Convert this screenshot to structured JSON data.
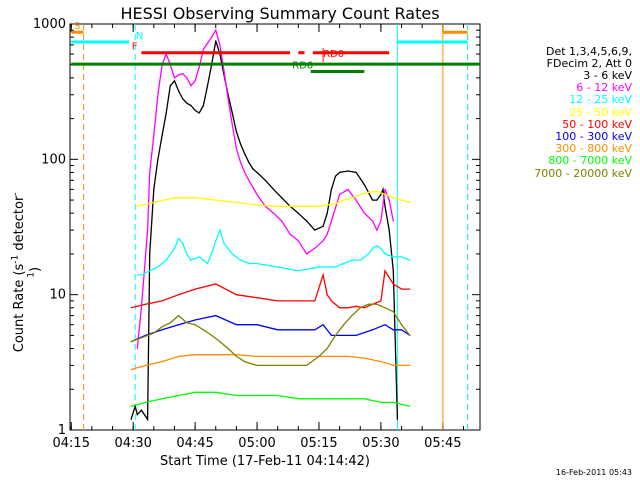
{
  "chart_data": {
    "type": "line",
    "title": "HESSI Observing Summary Count Rates",
    "xlabel": "Start Time (17-Feb-11 04:14:42)",
    "ylabel_prefix": "Count Rate (s",
    "ylabel_sup1": "-1",
    "ylabel_mid": " detector",
    "ylabel_sup2": "-1",
    "ylabel_suffix": ")",
    "yscale": "log",
    "ylim": [
      1,
      1000
    ],
    "xlim": [
      "04:14:42",
      "05:54:00"
    ],
    "y_ticks": [
      "1",
      "10",
      "100",
      "1000"
    ],
    "x_ticks": [
      "04:15",
      "04:30",
      "04:45",
      "05:00",
      "05:15",
      "05:30",
      "05:45"
    ],
    "legend_header": [
      "Det 1,3,4,5,6,9,",
      "FDecim 2, Att 0"
    ],
    "footer": "16-Feb-2011 05:43",
    "series": [
      {
        "name": "3 - 6 keV",
        "color": "#000000",
        "t": [
          "04:29:30",
          "04:30:30",
          "04:31:00",
          "04:32:00",
          "04:33:30",
          "04:34:00",
          "04:35:00",
          "04:36:00",
          "04:37:00",
          "04:38:00",
          "04:39:00",
          "04:40:00",
          "04:41:00",
          "04:42:00",
          "04:43:00",
          "04:44:00",
          "04:45:00",
          "04:46:00",
          "04:47:00",
          "04:48:00",
          "04:49:00",
          "04:50:00",
          "04:51:00",
          "04:52:00",
          "04:53:00",
          "04:54:00",
          "04:55:00",
          "04:56:00",
          "04:57:00",
          "04:58:00",
          "04:59:00",
          "05:00:00",
          "05:02:00",
          "05:04:00",
          "05:06:00",
          "05:08:00",
          "05:10:00",
          "05:12:00",
          "05:14:00",
          "05:16:00",
          "05:17:00",
          "05:18:00",
          "05:19:00",
          "05:20:00",
          "05:22:00",
          "05:24:00",
          "05:26:00",
          "05:28:00",
          "05:29:00",
          "05:30:00",
          "05:30:30",
          "05:31:00",
          "05:32:00",
          "05:33:00",
          "05:34:00"
        ],
        "v": [
          1.2,
          1.5,
          1.3,
          1.4,
          1.2,
          20,
          60,
          100,
          150,
          220,
          350,
          380,
          320,
          280,
          260,
          250,
          230,
          220,
          250,
          350,
          500,
          750,
          600,
          420,
          300,
          220,
          160,
          130,
          110,
          95,
          85,
          80,
          70,
          60,
          52,
          45,
          40,
          35,
          30,
          32,
          40,
          60,
          75,
          80,
          82,
          80,
          65,
          50,
          50,
          55,
          60,
          45,
          30,
          15,
          1.2
        ]
      },
      {
        "name": "6 - 12 keV",
        "color": "#ff00ff",
        "t": [
          "04:31:00",
          "04:32:00",
          "04:33:30",
          "04:34:00",
          "04:35:00",
          "04:36:00",
          "04:37:00",
          "04:38:00",
          "04:39:00",
          "04:40:00",
          "04:41:00",
          "04:42:00",
          "04:43:00",
          "04:44:00",
          "04:45:00",
          "04:46:00",
          "04:47:00",
          "04:48:00",
          "04:49:00",
          "04:50:00",
          "04:51:00",
          "04:52:00",
          "04:53:00",
          "04:54:00",
          "04:55:00",
          "04:56:00",
          "04:57:00",
          "04:58:00",
          "05:00:00",
          "05:02:00",
          "05:04:00",
          "05:06:00",
          "05:08:00",
          "05:10:00",
          "05:12:00",
          "05:14:00",
          "05:16:00",
          "05:17:00",
          "05:18:00",
          "05:20:00",
          "05:22:00",
          "05:24:00",
          "05:26:00",
          "05:28:00",
          "05:29:00",
          "05:30:00",
          "05:31:00",
          "05:32:00",
          "05:33:00"
        ],
        "v": [
          4,
          8,
          30,
          80,
          150,
          300,
          500,
          600,
          500,
          400,
          420,
          430,
          400,
          350,
          380,
          480,
          650,
          720,
          800,
          900,
          700,
          450,
          280,
          180,
          120,
          95,
          80,
          70,
          55,
          45,
          40,
          35,
          28,
          25,
          20,
          22,
          25,
          28,
          35,
          55,
          60,
          50,
          40,
          35,
          30,
          35,
          60,
          50,
          35
        ]
      },
      {
        "name": "12 - 25 keV",
        "color": "#00ffff",
        "t": [
          "04:31:00",
          "04:32:00",
          "04:34:00",
          "04:36:00",
          "04:38:00",
          "04:40:00",
          "04:41:00",
          "04:42:00",
          "04:43:00",
          "04:44:00",
          "04:46:00",
          "04:48:00",
          "04:49:00",
          "04:50:00",
          "04:51:00",
          "04:52:00",
          "04:54:00",
          "04:56:00",
          "04:58:00",
          "05:00:00",
          "05:05:00",
          "05:10:00",
          "05:15:00",
          "05:17:00",
          "05:19:00",
          "05:21:00",
          "05:23:00",
          "05:25:00",
          "05:27:00",
          "05:28:00",
          "05:29:00",
          "05:30:00",
          "05:31:00",
          "05:33:00",
          "05:35:00",
          "05:37:00"
        ],
        "v": [
          14,
          14,
          15,
          16,
          18,
          22,
          26,
          24,
          20,
          18,
          19,
          17,
          20,
          25,
          30,
          24,
          20,
          18,
          17,
          17,
          16,
          15,
          16,
          16,
          16,
          17,
          18,
          18,
          20,
          22,
          23,
          22,
          20,
          19,
          19,
          18
        ]
      },
      {
        "name": "25 - 50 keV",
        "color": "#ffff00",
        "t": [
          "04:31:00",
          "04:35:00",
          "04:40:00",
          "04:45:00",
          "04:50:00",
          "04:55:00",
          "05:00:00",
          "05:05:00",
          "05:10:00",
          "05:15:00",
          "05:17:00",
          "05:19:00",
          "05:21:00",
          "05:23:00",
          "05:25:00",
          "05:27:00",
          "05:29:00",
          "05:31:00",
          "05:33:00",
          "05:37:00"
        ],
        "v": [
          45,
          48,
          52,
          52,
          50,
          48,
          46,
          45,
          45,
          45,
          46,
          47,
          50,
          52,
          55,
          57,
          58,
          55,
          52,
          48
        ]
      },
      {
        "name": "50 - 100 keV",
        "color": "#ff0000",
        "t": [
          "04:29:30",
          "04:33:00",
          "04:37:00",
          "04:41:00",
          "04:45:00",
          "04:50:00",
          "04:55:00",
          "05:00:00",
          "05:05:00",
          "05:10:00",
          "05:14:00",
          "05:16:00",
          "05:17:00",
          "05:18:00",
          "05:20:00",
          "05:22:00",
          "05:24:00",
          "05:26:00",
          "05:28:00",
          "05:30:00",
          "05:31:00",
          "05:33:00",
          "05:35:00",
          "05:37:00"
        ],
        "v": [
          8,
          8.5,
          9,
          10,
          11,
          12,
          10,
          9.5,
          9,
          9,
          9,
          14,
          10,
          9,
          8,
          8,
          8.2,
          8,
          8.5,
          9,
          15,
          12,
          11,
          11
        ]
      },
      {
        "name": "100 - 300 keV",
        "color": "#0000ff",
        "t": [
          "04:29:30",
          "04:33:00",
          "04:37:00",
          "04:41:00",
          "04:45:00",
          "04:50:00",
          "04:55:00",
          "05:00:00",
          "05:05:00",
          "05:10:00",
          "05:14:00",
          "05:16:00",
          "05:18:00",
          "05:20:00",
          "05:24:00",
          "05:28:00",
          "05:31:00",
          "05:33:00",
          "05:35:00",
          "05:37:00"
        ],
        "v": [
          4.5,
          5,
          5.5,
          6,
          6.5,
          7,
          6,
          6,
          5.5,
          5.5,
          5.5,
          6,
          5,
          5,
          5,
          5.5,
          6,
          5.5,
          5.5,
          5
        ]
      },
      {
        "name": "300 - 800 keV",
        "color": "#ff8c00",
        "t": [
          "04:29:30",
          "04:33:00",
          "04:37:00",
          "04:41:00",
          "04:45:00",
          "04:50:00",
          "04:55:00",
          "05:00:00",
          "05:05:00",
          "05:10:00",
          "05:14:00",
          "05:18:00",
          "05:22:00",
          "05:26:00",
          "05:30:00",
          "05:33:00",
          "05:37:00"
        ],
        "v": [
          2.8,
          3,
          3.2,
          3.5,
          3.6,
          3.6,
          3.6,
          3.5,
          3.5,
          3.5,
          3.5,
          3.5,
          3.5,
          3.4,
          3.2,
          3,
          3
        ]
      },
      {
        "name": "800 - 7000 keV",
        "color": "#00ff00",
        "t": [
          "04:29:30",
          "04:33:00",
          "04:37:00",
          "04:41:00",
          "04:45:00",
          "04:50:00",
          "04:55:00",
          "05:00:00",
          "05:05:00",
          "05:10:00",
          "05:14:00",
          "05:18:00",
          "05:22:00",
          "05:26:00",
          "05:30:00",
          "05:33:00",
          "05:37:00"
        ],
        "v": [
          1.5,
          1.6,
          1.7,
          1.8,
          1.9,
          1.9,
          1.8,
          1.8,
          1.8,
          1.7,
          1.7,
          1.7,
          1.7,
          1.7,
          1.6,
          1.6,
          1.5
        ]
      },
      {
        "name": "7000 - 20000 keV",
        "color": "#808000",
        "t": [
          "04:29:30",
          "04:32:00",
          "04:35:00",
          "04:37:00",
          "04:39:00",
          "04:41:00",
          "04:43:00",
          "04:45:00",
          "04:47:00",
          "04:49:00",
          "04:51:00",
          "04:53:00",
          "04:55:00",
          "04:57:00",
          "05:00:00",
          "05:04:00",
          "05:08:00",
          "05:12:00",
          "05:15:00",
          "05:17:00",
          "05:19:00",
          "05:21:00",
          "05:23:00",
          "05:25:00",
          "05:27:00",
          "05:29:00",
          "05:31:00",
          "05:33:00",
          "05:35:00",
          "05:37:00"
        ],
        "v": [
          4.5,
          4.8,
          5.2,
          5.8,
          6.2,
          7,
          6.2,
          6,
          5.5,
          5,
          4.5,
          4,
          3.5,
          3.2,
          3,
          3,
          3,
          3,
          3.5,
          4,
          5,
          6,
          7,
          8,
          8.5,
          8.5,
          8,
          7.5,
          6,
          5
        ]
      }
    ],
    "state_bars": [
      {
        "label": "S",
        "color": "#ff8c00",
        "segments": [
          [
            "04:15:00",
            "04:18:00"
          ],
          [
            "05:45:00",
            "05:51:00"
          ]
        ],
        "y": 1.0
      },
      {
        "label": "N",
        "color": "#00ffff",
        "segments": [
          [
            "04:15:00",
            "04:29:00"
          ],
          [
            "05:34:00",
            "05:51:00"
          ]
        ],
        "y": 2.2
      },
      {
        "label": "F",
        "color": "#ff0000",
        "segments": [
          [
            "04:32:00",
            "05:08:00"
          ],
          [
            "05:10:00",
            "05:11:30"
          ],
          [
            "05:13:30",
            "05:22:00"
          ],
          [
            "05:22:00",
            "05:32:00"
          ]
        ],
        "y": 3.5
      },
      {
        "label": "RD0",
        "color": "#ff0000",
        "segments": [],
        "y": 4.4
      },
      {
        "label": "",
        "color": "#008000",
        "segments": [
          [
            "04:15:00",
            "05:54:00"
          ]
        ],
        "y": 4.9
      },
      {
        "label": "RD6",
        "color": "#008000",
        "segments": [
          [
            "05:13:00",
            "05:26:00"
          ]
        ],
        "y": 5.8
      }
    ],
    "vlines": [
      {
        "t": "04:18:00",
        "color": "#ff8c00",
        "dash": true
      },
      {
        "t": "04:30:30",
        "color": "#00ffff",
        "dash": true
      },
      {
        "t": "05:34:00",
        "color": "#00ffff",
        "dash": false
      },
      {
        "t": "05:45:00",
        "color": "#ff8c00",
        "dash": false
      },
      {
        "t": "05:51:00",
        "color": "#ff8c00",
        "dash": true
      },
      {
        "t": "05:51:00",
        "color": "#00ffff",
        "dash": true
      }
    ]
  }
}
